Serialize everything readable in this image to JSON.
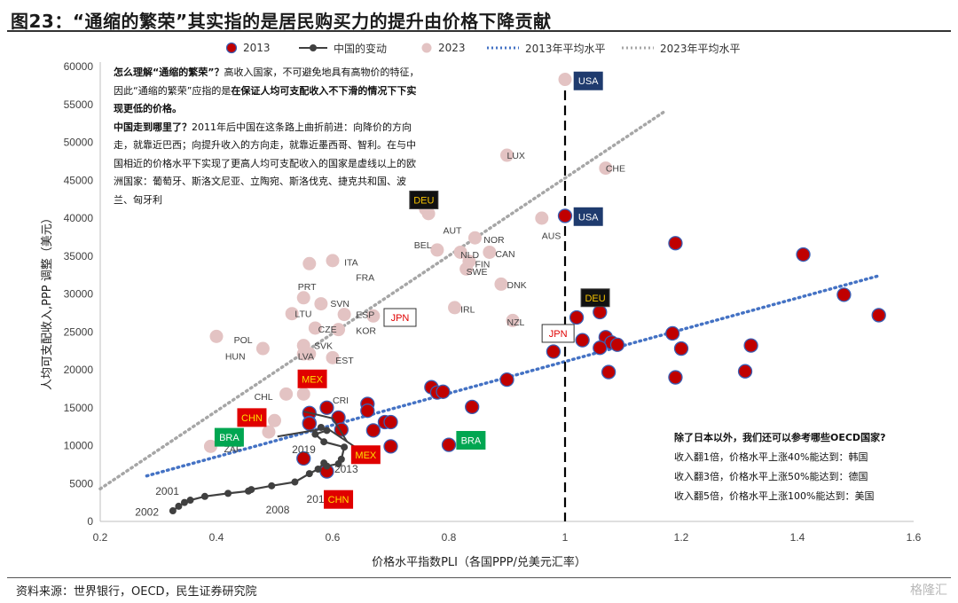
{
  "title": "图23：“通缩的繁荣”其实指的是居民购买力的提升由价格下降贡献",
  "legend": {
    "s2013": "2013",
    "china": "中国的变动",
    "s2023": "2023",
    "avg2013": "2013年平均水平",
    "avg2023": "2023年平均水平"
  },
  "note_top": {
    "q1": "怎么理解“通缩的繁荣”？",
    "p1a": "高收入国家，不可避免地具有高物价的特征，因此“通缩的繁荣”应指的是",
    "p1b": "在保证人均可支配收入不下滑的情况下下实现更低的价格。",
    "q2": "中国走到哪里了？",
    "p2": "2011年后中国在这条路上曲折前进：向降价的方向走，就靠近巴西；向提升收入的方向走，就靠近墨西哥、智利。在与中国相近的价格水平下实现了更高人均可支配收入的国家是虚线以上的欧洲国家：葡萄牙、斯洛文尼亚、立陶宛、斯洛伐克、捷克共和国、波兰、匈牙利"
  },
  "note_bottom": {
    "q": "除了日本以外，我们还可以参考哪些OECD国家?",
    "l1": "收入翻1倍，价格水平上涨40%能达到：韩国",
    "l2": "收入翻3倍，价格水平上涨50%能达到：德国",
    "l3": "收入翻5倍，价格水平上涨100%能达到：美国"
  },
  "axis": {
    "xlabel": "价格水平指数PLI（各国PPP/兑美元汇率）",
    "ylabel": "人均可支配收入,PPP 调整（美元）"
  },
  "source": "资料来源：世界银行，OECD，民生证券研究院",
  "watermark": "格隆汇",
  "colors": {
    "s2013_fill": "#c00000",
    "s2013_edge": "#3a5fb5",
    "s2023_fill": "#e3c3c3",
    "china_line": "#404040",
    "avg2013": "#4472c4",
    "avg2023": "#a6a6a6",
    "usa_box": "#1f3b6e",
    "deu_box": "#111111",
    "deu_text": "#f5c200",
    "red_box": "#e00000",
    "red_box_text": "#ffe000",
    "green_box": "#00a651"
  },
  "chart_data": {
    "type": "scatter",
    "xlim": [
      0.2,
      1.6
    ],
    "ylim": [
      0,
      60000
    ],
    "xticks": [
      "0.2",
      "0.4",
      "0.6",
      "0.8",
      "1",
      "1.2",
      "1.4",
      "1.6"
    ],
    "yticks": [
      "0",
      "5000",
      "10000",
      "15000",
      "20000",
      "25000",
      "30000",
      "35000",
      "40000",
      "45000",
      "50000",
      "55000",
      "60000"
    ],
    "x_tick_values": [
      0.2,
      0.4,
      0.6,
      0.8,
      1.0,
      1.2,
      1.4,
      1.6
    ],
    "y_tick_values": [
      0,
      5000,
      10000,
      15000,
      20000,
      25000,
      30000,
      35000,
      40000,
      45000,
      50000,
      55000,
      60000
    ],
    "vline_x": 1.0,
    "series_2013": [
      [
        1.0,
        40300
      ],
      [
        1.19,
        36700
      ],
      [
        1.41,
        35200
      ],
      [
        1.48,
        29900
      ],
      [
        1.54,
        27200
      ],
      [
        1.02,
        26900
      ],
      [
        1.06,
        27600
      ],
      [
        1.03,
        23900
      ],
      [
        1.07,
        24300
      ],
      [
        1.08,
        23600
      ],
      [
        1.09,
        23300
      ],
      [
        1.06,
        22900
      ],
      [
        0.98,
        22400
      ],
      [
        1.185,
        24800
      ],
      [
        1.2,
        22800
      ],
      [
        1.32,
        23200
      ],
      [
        1.19,
        19000
      ],
      [
        1.31,
        19800
      ],
      [
        1.075,
        19700
      ],
      [
        0.9,
        18700
      ],
      [
        0.77,
        17700
      ],
      [
        0.78,
        17000
      ],
      [
        0.79,
        17100
      ],
      [
        0.84,
        15100
      ],
      [
        0.66,
        15500
      ],
      [
        0.66,
        14600
      ],
      [
        0.61,
        13700
      ],
      [
        0.67,
        12000
      ],
      [
        0.69,
        13100
      ],
      [
        0.7,
        13100
      ],
      [
        0.7,
        9900
      ],
      [
        0.8,
        10100
      ],
      [
        0.56,
        14300
      ],
      [
        0.56,
        13000
      ],
      [
        0.56,
        12900
      ],
      [
        0.59,
        15000
      ],
      [
        0.615,
        12100
      ],
      [
        0.55,
        8300
      ],
      [
        0.59,
        6600
      ]
    ],
    "series_2023": [
      [
        1.0,
        58300
      ],
      [
        0.9,
        48300
      ],
      [
        1.07,
        46600
      ],
      [
        0.96,
        40000
      ],
      [
        0.76,
        41200
      ],
      [
        0.765,
        40600
      ],
      [
        0.845,
        37400
      ],
      [
        0.78,
        35800
      ],
      [
        0.82,
        35500
      ],
      [
        0.87,
        35500
      ],
      [
        0.835,
        34300
      ],
      [
        0.83,
        33300
      ],
      [
        0.89,
        31300
      ],
      [
        0.6,
        34400
      ],
      [
        0.56,
        34000
      ],
      [
        0.55,
        29500
      ],
      [
        0.58,
        28700
      ],
      [
        0.53,
        27400
      ],
      [
        0.62,
        27300
      ],
      [
        0.67,
        27100
      ],
      [
        0.57,
        25500
      ],
      [
        0.61,
        25300
      ],
      [
        0.91,
        26500
      ],
      [
        0.81,
        28200
      ],
      [
        0.4,
        24400
      ],
      [
        0.48,
        22800
      ],
      [
        0.55,
        23200
      ],
      [
        0.55,
        22100
      ],
      [
        0.56,
        22100
      ],
      [
        0.6,
        21600
      ],
      [
        0.52,
        16800
      ],
      [
        0.55,
        16800
      ],
      [
        0.59,
        14900
      ],
      [
        0.5,
        13300
      ],
      [
        0.49,
        11800
      ],
      [
        0.39,
        9900
      ]
    ],
    "series_2023_labels": [
      [
        "LUX",
        0.9,
        48300
      ],
      [
        "CHE",
        1.07,
        46600
      ],
      [
        "AUT",
        0.79,
        38400
      ],
      [
        "AUS",
        0.96,
        37700
      ],
      [
        "NOR",
        0.86,
        37200
      ],
      [
        "BEL",
        0.74,
        36500
      ],
      [
        "CAN",
        0.88,
        35300
      ],
      [
        "NLD",
        0.82,
        35200
      ],
      [
        "FIN",
        0.845,
        34000
      ],
      [
        "SWE",
        0.83,
        33000
      ],
      [
        "ITA",
        0.62,
        34200
      ],
      [
        "FRA",
        0.64,
        32200
      ],
      [
        "DNK",
        0.9,
        31200
      ],
      [
        "PRT",
        0.54,
        31000
      ],
      [
        "SVN",
        0.596,
        28800
      ],
      [
        "LTU",
        0.535,
        27400
      ],
      [
        "ESP",
        0.64,
        27300
      ],
      [
        "CZE",
        0.575,
        25400
      ],
      [
        "KOR",
        0.64,
        25200
      ],
      [
        "IRL",
        0.82,
        28000
      ],
      [
        "NZL",
        0.9,
        26300
      ],
      [
        "POL",
        0.43,
        24000
      ],
      [
        "SVK",
        0.568,
        23200
      ],
      [
        "HUN",
        0.415,
        21800
      ],
      [
        "LVA",
        0.54,
        21800
      ],
      [
        "EST",
        0.605,
        21300
      ],
      [
        "CHL",
        0.465,
        16500
      ],
      [
        "CRI",
        0.6,
        16000
      ],
      [
        "ZAF",
        0.413,
        9600
      ]
    ],
    "china_path": [
      [
        0.325,
        1400
      ],
      [
        0.335,
        2000
      ],
      [
        0.345,
        2500
      ],
      [
        0.355,
        2800
      ],
      [
        0.38,
        3300
      ],
      [
        0.42,
        3700
      ],
      [
        0.455,
        4000
      ],
      [
        0.46,
        4200
      ],
      [
        0.495,
        4700
      ],
      [
        0.535,
        5200
      ],
      [
        0.56,
        6300
      ],
      [
        0.575,
        6900
      ],
      [
        0.585,
        7700
      ],
      [
        0.59,
        7300
      ],
      [
        0.61,
        7600
      ],
      [
        0.615,
        8200
      ],
      [
        0.62,
        9800
      ],
      [
        0.585,
        10500
      ],
      [
        0.57,
        11500
      ],
      [
        0.59,
        12000
      ],
      [
        0.58,
        12400
      ]
    ],
    "china_year_labels": [
      [
        "2001",
        0.295,
        4000
      ],
      [
        "2002",
        0.26,
        1200
      ],
      [
        "2008",
        0.485,
        1500
      ],
      [
        "2011",
        0.555,
        2900
      ],
      [
        "2013",
        0.603,
        6900
      ],
      [
        "2019",
        0.53,
        9500
      ]
    ],
    "brazil_path": [
      [
        0.505,
        11200
      ],
      [
        0.59,
        12300
      ],
      [
        0.645,
        9500
      ]
    ],
    "mexico_path": [
      [
        0.55,
        14500
      ],
      [
        0.6,
        13600
      ],
      [
        0.625,
        10500
      ]
    ],
    "avg2013_line": [
      [
        0.28,
        6000
      ],
      [
        1.54,
        32400
      ]
    ],
    "avg2023_line": [
      [
        0.2,
        4300
      ],
      [
        1.17,
        54000
      ]
    ],
    "boxes": [
      {
        "text": "USA",
        "x": 1.04,
        "y": 58100,
        "style": "usa"
      },
      {
        "text": "USA",
        "x": 1.04,
        "y": 40200,
        "style": "usa"
      },
      {
        "text": "DEU",
        "x": 0.757,
        "y": 42400,
        "style": "deu"
      },
      {
        "text": "DEU",
        "x": 1.052,
        "y": 29500,
        "style": "deu"
      },
      {
        "text": "JPN",
        "x": 0.716,
        "y": 26900,
        "style": "jpn"
      },
      {
        "text": "JPN",
        "x": 0.988,
        "y": 24800,
        "style": "jpn"
      },
      {
        "text": "MEX",
        "x": 0.565,
        "y": 18800,
        "style": "red"
      },
      {
        "text": "MEX",
        "x": 0.657,
        "y": 8800,
        "style": "red"
      },
      {
        "text": "CHN",
        "x": 0.461,
        "y": 13700,
        "style": "red"
      },
      {
        "text": "CHN",
        "x": 0.61,
        "y": 2900,
        "style": "red"
      },
      {
        "text": "BRA",
        "x": 0.422,
        "y": 11100,
        "style": "green"
      },
      {
        "text": "BRA",
        "x": 0.838,
        "y": 10700,
        "style": "green"
      }
    ]
  }
}
